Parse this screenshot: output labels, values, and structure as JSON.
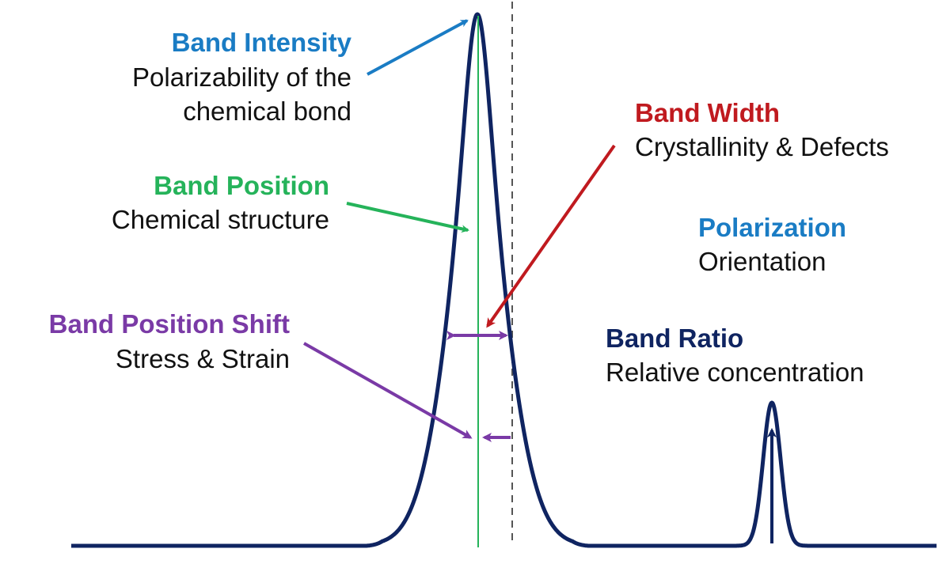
{
  "colors": {
    "curve": "#0f2461",
    "intensity": "#1a7cc4",
    "position": "#25b35a",
    "width": "#c01a1f",
    "shift": "#7a3aa6",
    "polarization": "#1a7cc4",
    "ratio": "#0f2461",
    "text": "#111111",
    "dashed": "#555555"
  },
  "annotations": {
    "intensity": {
      "title": "Band Intensity",
      "line1": "Polarizability of the",
      "line2": "chemical bond"
    },
    "position": {
      "title": "Band Position",
      "line1": "Chemical structure"
    },
    "width": {
      "title": "Band Width",
      "line1": "Crystallinity & Defects"
    },
    "polarization": {
      "title": "Polarization",
      "line1": "Orientation"
    },
    "shift": {
      "title": "Band Position Shift",
      "line1": "Stress & Strain"
    },
    "ratio": {
      "title": "Band Ratio",
      "line1": "Relative concentration"
    }
  }
}
